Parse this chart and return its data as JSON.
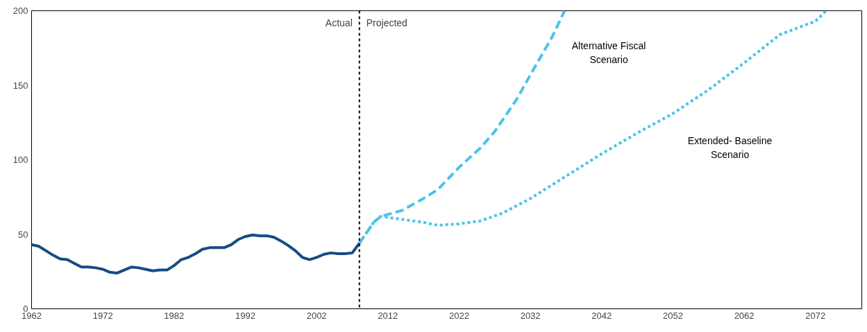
{
  "chart_data": {
    "type": "line",
    "xlim": [
      1962,
      2078.5
    ],
    "ylim": [
      0,
      200
    ],
    "xticks": [
      1962,
      1972,
      1982,
      1992,
      2002,
      2012,
      2022,
      2032,
      2042,
      2052,
      2062,
      2072
    ],
    "yticks": [
      0,
      50,
      100,
      150,
      200
    ],
    "grid": false,
    "marker": "none",
    "series": [
      {
        "color": "#174a86",
        "line_style": "solid",
        "x": [
          1962,
          1963,
          1964,
          1965,
          1966,
          1967,
          1968,
          1969,
          1970,
          1971,
          1972,
          1973,
          1974,
          1975,
          1976,
          1977,
          1978,
          1979,
          1980,
          1981,
          1982,
          1983,
          1984,
          1985,
          1986,
          1987,
          1988,
          1989,
          1990,
          1991,
          1992,
          1993,
          1994,
          1995,
          1996,
          1997,
          1998,
          1999,
          2000,
          2001,
          2002,
          2003,
          2004,
          2005,
          2006,
          2007,
          2008
        ],
        "values": [
          43,
          42,
          39,
          36,
          33.5,
          33,
          30.5,
          28,
          28,
          27.5,
          26.5,
          24.5,
          24,
          26,
          28,
          27.5,
          26.5,
          25.5,
          26,
          26,
          29,
          33,
          34.5,
          37,
          40,
          41,
          41,
          41,
          43,
          46.5,
          48.5,
          49.5,
          49,
          49,
          48,
          45.5,
          42.5,
          39,
          34.5,
          33,
          34.5,
          36.5,
          37.5,
          37,
          37,
          37.5,
          44
        ]
      },
      {
        "name": "Alternative Fiscal Scenario",
        "color": "#4cc3ea",
        "line_style": "dashed",
        "x": [
          2008,
          2010,
          2011,
          2014,
          2017,
          2019,
          2022,
          2025,
          2027,
          2030,
          2032,
          2035,
          2036.8
        ],
        "values": [
          44,
          58,
          62,
          66,
          74,
          80,
          95,
          108,
          119,
          140,
          157,
          182,
          200
        ]
      },
      {
        "name": "Extended- Baseline Scenario",
        "color": "#4cc3ea",
        "line_style": "dotted",
        "x": [
          2008,
          2010,
          2011,
          2014,
          2017,
          2019,
          2022,
          2025,
          2028,
          2032,
          2037,
          2042,
          2047,
          2052,
          2057,
          2062,
          2067,
          2072,
          2073.5
        ],
        "values": [
          44,
          58,
          62,
          60,
          58,
          56,
          57,
          59,
          64,
          74,
          89,
          104,
          118,
          131,
          147,
          165,
          184,
          193,
          200
        ]
      }
    ],
    "ref_lines": [
      {
        "axis": "x",
        "value": 2008,
        "color": "#000000",
        "line_style": "dotted"
      }
    ],
    "annotations": [
      {
        "text": "Actual",
        "x": 2008,
        "y": 188
      },
      {
        "text": "Projected",
        "x": 2008,
        "y": 188
      }
    ]
  }
}
